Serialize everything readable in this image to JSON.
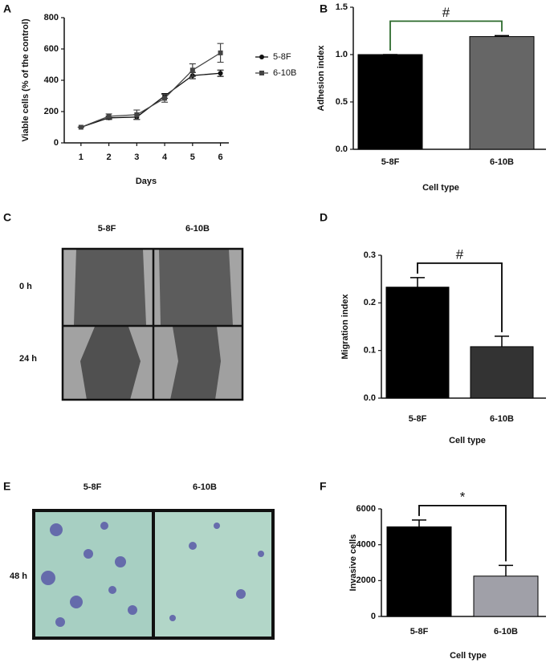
{
  "panel_labels": [
    "A",
    "B",
    "C",
    "D",
    "E",
    "F"
  ],
  "images": [
    {
      "columns": [
        "5-8F",
        "6-10B"
      ],
      "rows": [
        "0 h",
        "24 h"
      ]
    },
    {
      "columns": [
        "5-8F",
        "6-10B"
      ],
      "rows": [
        "48 h"
      ]
    }
  ],
  "chart_data": [
    {
      "type": "line",
      "xlabel": "Days",
      "ylabel": "Viable cells (% of the control)",
      "x": [
        1,
        2,
        3,
        4,
        5,
        6
      ],
      "xlim": [
        0.4,
        6.3
      ],
      "xticks": [
        1,
        2,
        3,
        4,
        5,
        6
      ],
      "ylim": [
        0,
        800
      ],
      "yticks": [
        0,
        200,
        400,
        600,
        800
      ],
      "series": [
        {
          "name": "5-8F",
          "color": "#111111",
          "marker": "circle",
          "values": [
            100,
            160,
            165,
            300,
            430,
            445
          ],
          "errors": [
            0,
            10,
            15,
            15,
            20,
            20
          ]
        },
        {
          "name": "6-10B",
          "color": "#444444",
          "marker": "square",
          "values": [
            100,
            170,
            180,
            285,
            465,
            575
          ],
          "errors": [
            0,
            15,
            30,
            25,
            40,
            60
          ]
        }
      ]
    },
    {
      "type": "bar",
      "xlabel": "Cell type",
      "ylabel": "Adhesion index",
      "categories": [
        "5-8F",
        "6-10B"
      ],
      "values": [
        1.0,
        1.19
      ],
      "errors": [
        0,
        0.01
      ],
      "colors": [
        "#000000",
        "#666666"
      ],
      "annotation": "#",
      "bracket_color": "#2e6b2e",
      "ylim": [
        0,
        1.5
      ],
      "yticks": [
        {
          "value": 0,
          "label": "0.0"
        },
        {
          "value": 0.5,
          "label": "0.5"
        },
        {
          "value": 1,
          "label": "1.0"
        },
        {
          "value": 1.5,
          "label": "1.5"
        }
      ]
    },
    {
      "type": "bar",
      "xlabel": "Cell type",
      "ylabel": "Migration index",
      "categories": [
        "5-8F",
        "6-10B"
      ],
      "values": [
        0.233,
        0.108
      ],
      "errors": [
        0.02,
        0.022
      ],
      "colors": [
        "#000000",
        "#333333"
      ],
      "annotation": "#",
      "bracket_color": "#000000",
      "ylim": [
        0,
        0.3
      ],
      "yticks": [
        {
          "value": 0,
          "label": "0.0"
        },
        0.1,
        0.2,
        0.3
      ]
    },
    {
      "type": "bar",
      "xlabel": "Cell type",
      "ylabel": "Invasive cells",
      "categories": [
        "5-8F",
        "6-10B"
      ],
      "values": [
        5000,
        2250
      ],
      "errors": [
        380,
        600
      ],
      "colors": [
        "#000000",
        "#a0a0a8"
      ],
      "annotation": "*",
      "bracket_color": "#000000",
      "ylim": [
        0,
        6000
      ],
      "yticks": [
        0,
        2000,
        4000,
        6000
      ]
    }
  ]
}
